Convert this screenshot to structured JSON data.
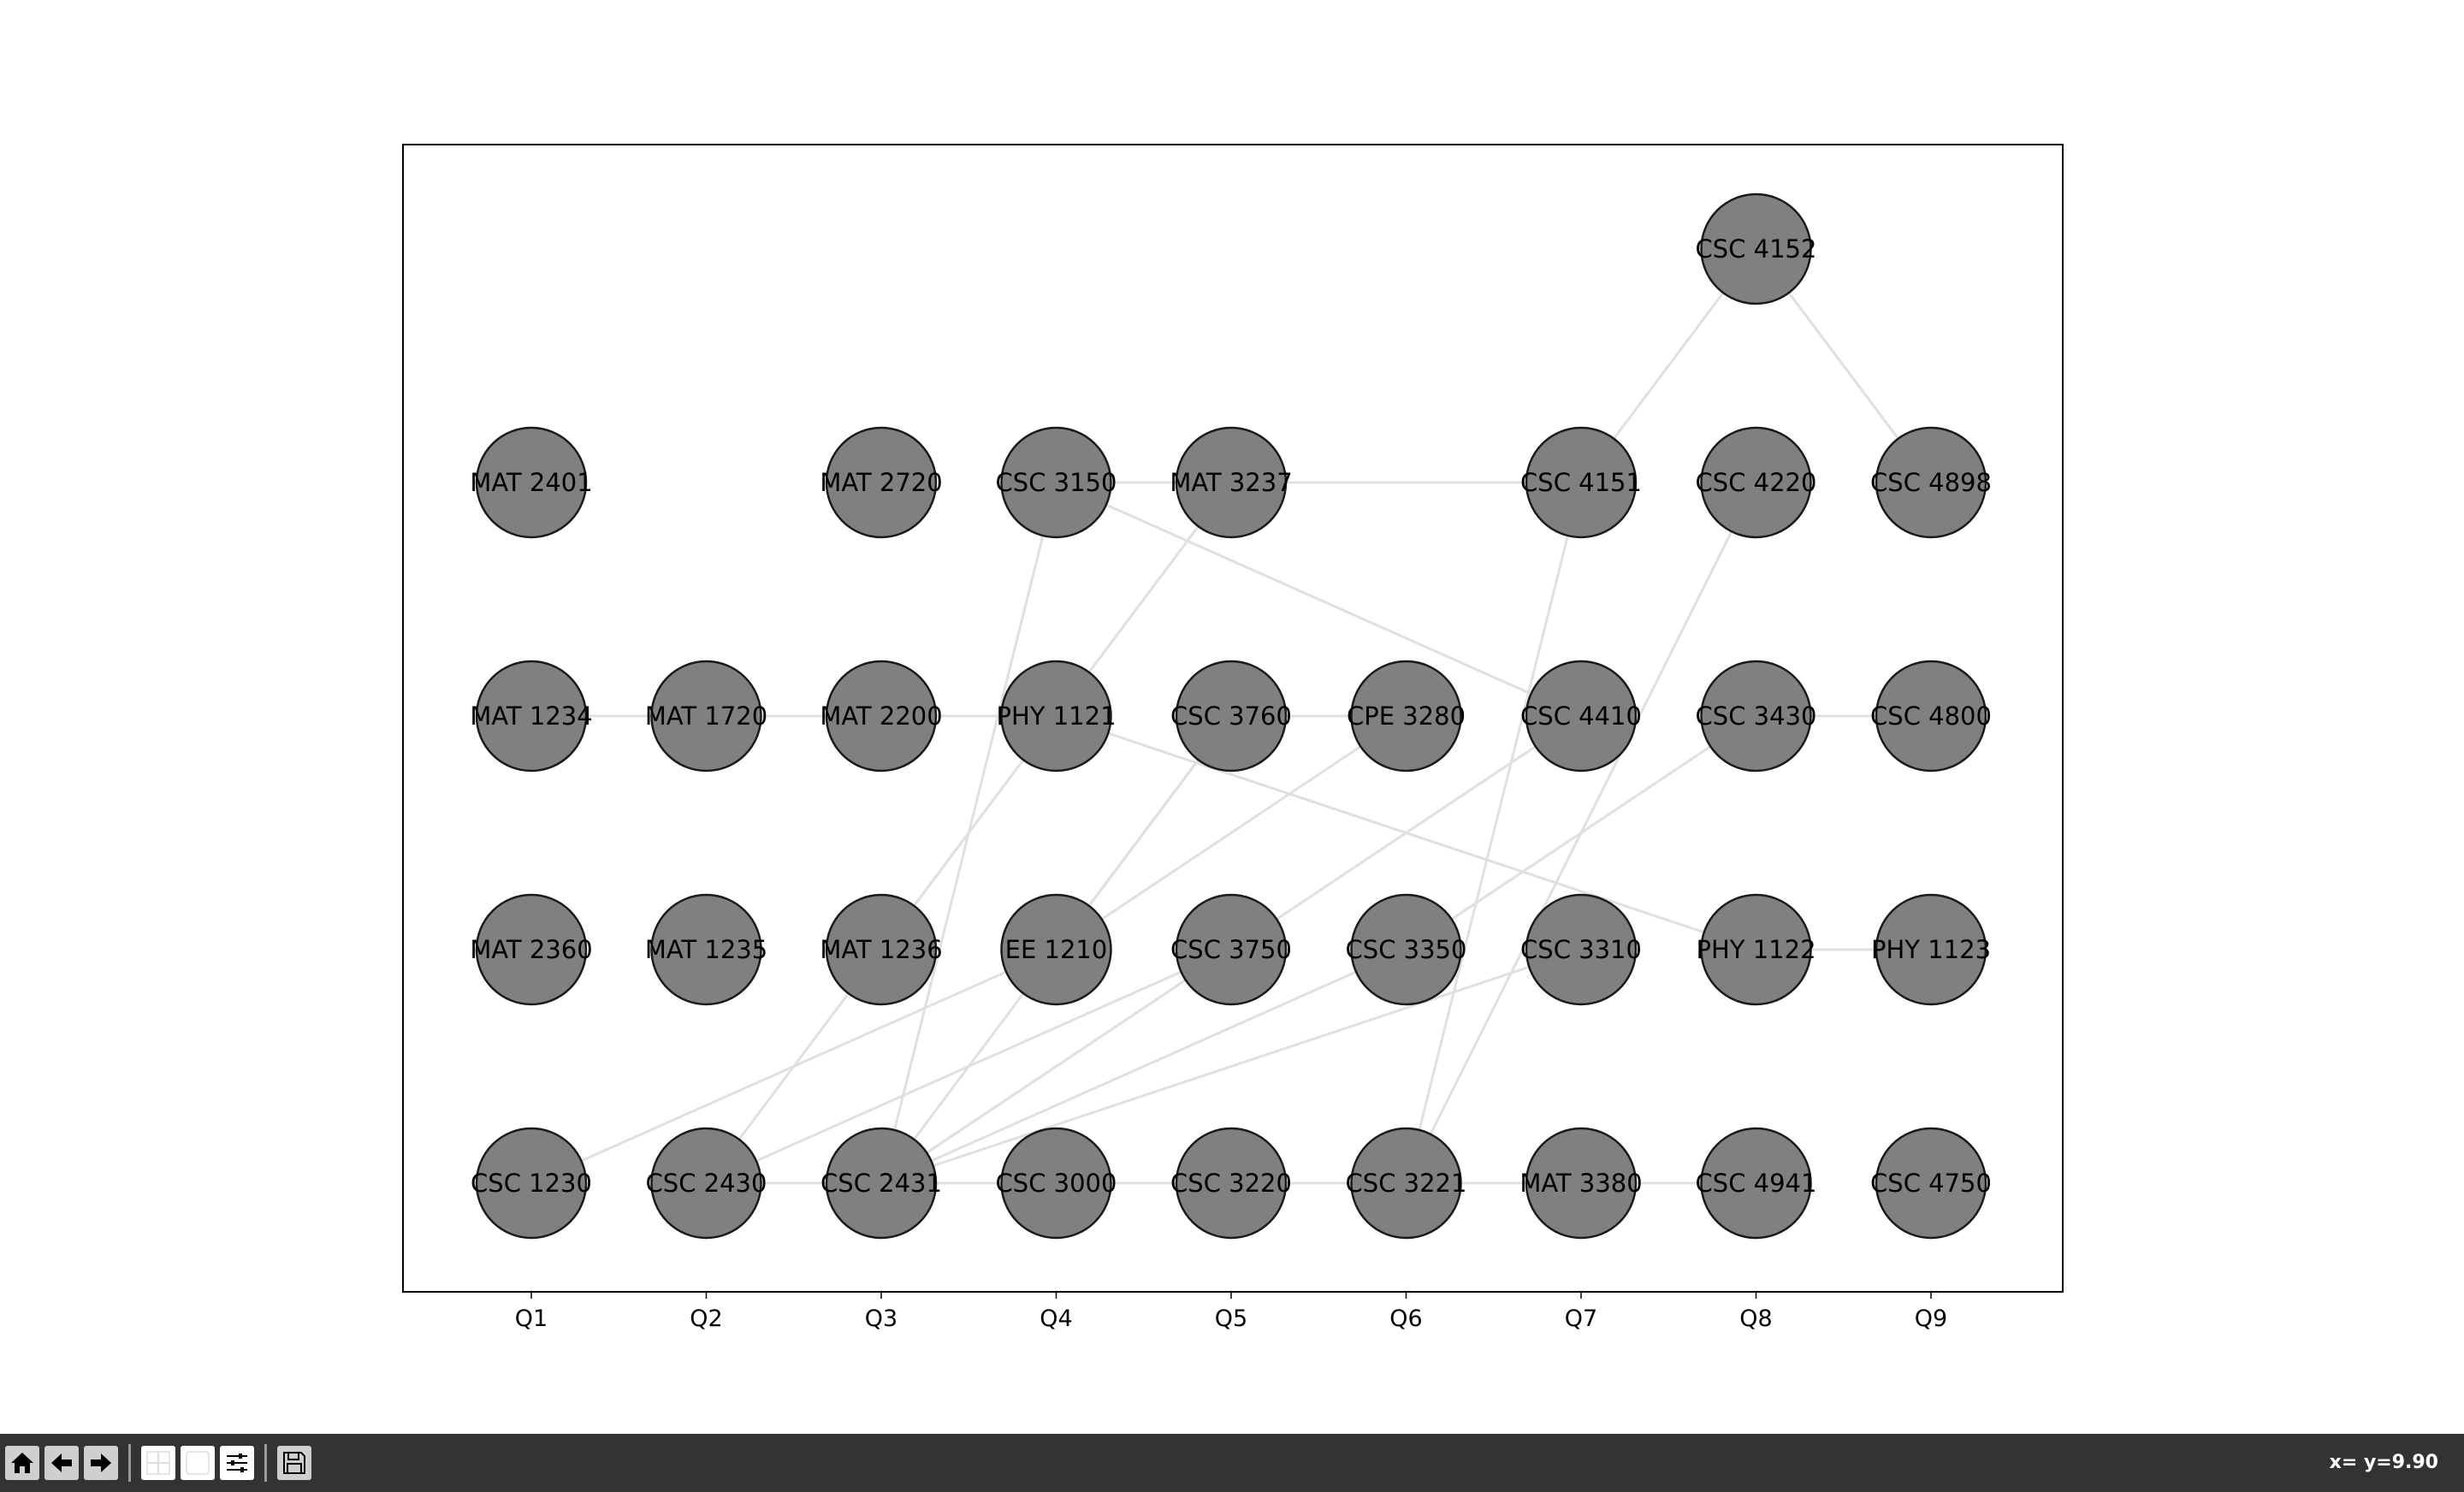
{
  "chart_data": {
    "type": "graph",
    "x_ticks": [
      "Q1",
      "Q2",
      "Q3",
      "Q4",
      "Q5",
      "Q6",
      "Q7",
      "Q8",
      "Q9"
    ],
    "grid": false,
    "node_color": "#808080",
    "edge_color": "#e0e0e0",
    "nodes": [
      {
        "id": "MAT 2401",
        "q": 1,
        "row": 4
      },
      {
        "id": "MAT 1234",
        "q": 1,
        "row": 3
      },
      {
        "id": "MAT 2360",
        "q": 1,
        "row": 2
      },
      {
        "id": "CSC 1230",
        "q": 1,
        "row": 1
      },
      {
        "id": "MAT 1720",
        "q": 2,
        "row": 3
      },
      {
        "id": "MAT 1235",
        "q": 2,
        "row": 2
      },
      {
        "id": "CSC 2430",
        "q": 2,
        "row": 1
      },
      {
        "id": "MAT 2720",
        "q": 3,
        "row": 4
      },
      {
        "id": "MAT 2200",
        "q": 3,
        "row": 3
      },
      {
        "id": "MAT 1236",
        "q": 3,
        "row": 2
      },
      {
        "id": "CSC 2431",
        "q": 3,
        "row": 1
      },
      {
        "id": "CSC 3150",
        "q": 4,
        "row": 4
      },
      {
        "id": "PHY 1121",
        "q": 4,
        "row": 3
      },
      {
        "id": "EE 1210",
        "q": 4,
        "row": 2
      },
      {
        "id": "CSC 3000",
        "q": 4,
        "row": 1
      },
      {
        "id": "MAT 3237",
        "q": 5,
        "row": 4
      },
      {
        "id": "CSC 3760",
        "q": 5,
        "row": 3
      },
      {
        "id": "CSC 3750",
        "q": 5,
        "row": 2
      },
      {
        "id": "CSC 3220",
        "q": 5,
        "row": 1
      },
      {
        "id": "CPE 3280",
        "q": 6,
        "row": 3
      },
      {
        "id": "CSC 3350",
        "q": 6,
        "row": 2
      },
      {
        "id": "CSC 3221",
        "q": 6,
        "row": 1
      },
      {
        "id": "CSC 4151",
        "q": 7,
        "row": 4
      },
      {
        "id": "CSC 4410",
        "q": 7,
        "row": 3
      },
      {
        "id": "CSC 3310",
        "q": 7,
        "row": 2
      },
      {
        "id": "MAT 3380",
        "q": 7,
        "row": 1
      },
      {
        "id": "CSC 4152",
        "q": 8,
        "row": 5
      },
      {
        "id": "CSC 4220",
        "q": 8,
        "row": 4
      },
      {
        "id": "CSC 3430",
        "q": 8,
        "row": 3
      },
      {
        "id": "PHY 1122",
        "q": 8,
        "row": 2
      },
      {
        "id": "CSC 4941",
        "q": 8,
        "row": 1
      },
      {
        "id": "CSC 4898",
        "q": 9,
        "row": 4
      },
      {
        "id": "CSC 4800",
        "q": 9,
        "row": 3
      },
      {
        "id": "PHY 1123",
        "q": 9,
        "row": 2
      },
      {
        "id": "CSC 4750",
        "q": 9,
        "row": 1
      }
    ],
    "edges": [
      [
        "MAT 1234",
        "MAT 1720"
      ],
      [
        "MAT 1720",
        "MAT 2200"
      ],
      [
        "MAT 2200",
        "PHY 1121"
      ],
      [
        "CSC 2430",
        "CSC 2431"
      ],
      [
        "CSC 2431",
        "CSC 3000"
      ],
      [
        "CSC 3000",
        "CSC 3220"
      ],
      [
        "CSC 3220",
        "CSC 3221"
      ],
      [
        "CSC 3221",
        "MAT 3380"
      ],
      [
        "MAT 3380",
        "CSC 4941"
      ],
      [
        "CSC 3430",
        "CSC 4800"
      ],
      [
        "PHY 1122",
        "PHY 1123"
      ],
      [
        "CSC 3150",
        "MAT 3237"
      ],
      [
        "MAT 3237",
        "CSC 4151"
      ],
      [
        "CSC 4151",
        "CSC 4152"
      ],
      [
        "CSC 4152",
        "CSC 4898"
      ],
      [
        "CSC 3150",
        "CSC 4410"
      ],
      [
        "CSC 3150",
        "CSC 2431"
      ],
      [
        "MAT 3237",
        "PHY 1121"
      ],
      [
        "PHY 1121",
        "MAT 1236"
      ],
      [
        "PHY 1121",
        "PHY 1122"
      ],
      [
        "PHY 1121",
        "CSC 2430"
      ],
      [
        "CSC 3760",
        "CPE 3280"
      ],
      [
        "CSC 3760",
        "EE 1210"
      ],
      [
        "CSC 3760",
        "CSC 2431"
      ],
      [
        "CSC 1230",
        "EE 1210"
      ],
      [
        "CPE 3280",
        "EE 1210"
      ],
      [
        "CSC 2430",
        "CSC 3750"
      ],
      [
        "CSC 2431",
        "CSC 3750"
      ],
      [
        "CSC 2431",
        "CSC 3350"
      ],
      [
        "CSC 2431",
        "CSC 3310"
      ],
      [
        "CSC 2431",
        "CSC 4410"
      ],
      [
        "CSC 3430",
        "CSC 3350"
      ],
      [
        "CSC 4151",
        "CSC 3221"
      ],
      [
        "CSC 4220",
        "CSC 3221"
      ]
    ]
  },
  "toolbar": {
    "buttons": [
      {
        "name": "home-icon"
      },
      {
        "name": "back-arrow-icon"
      },
      {
        "name": "forward-arrow-icon"
      },
      {
        "name": "pan-icon"
      },
      {
        "name": "zoom-icon"
      },
      {
        "name": "configure-subplots-icon"
      },
      {
        "name": "save-icon"
      }
    ],
    "coords_text": "x= y=9.90"
  }
}
